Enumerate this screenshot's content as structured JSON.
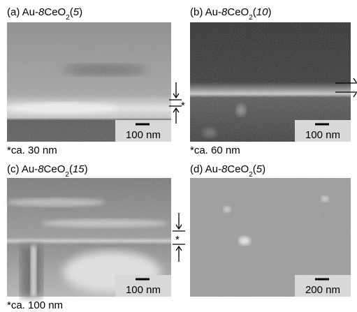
{
  "panels": [
    {
      "label": [
        {
          "text": "(a) Au-"
        },
        {
          "text": "8",
          "style": "italic"
        },
        {
          "text": "CeO"
        },
        {
          "text": "2",
          "style": "sub"
        },
        {
          "text": "("
        },
        {
          "text": "5",
          "style": "italic"
        },
        {
          "text": ")"
        }
      ],
      "scale_bar": "100 nm",
      "thickness_marker": "*",
      "caption": "*ca. 30 nm"
    },
    {
      "label": [
        {
          "text": "(b) Au-"
        },
        {
          "text": "8",
          "style": "italic"
        },
        {
          "text": "CeO"
        },
        {
          "text": "2",
          "style": "sub"
        },
        {
          "text": "("
        },
        {
          "text": "10",
          "style": "italic"
        },
        {
          "text": ")"
        }
      ],
      "scale_bar": "100 nm",
      "caption": "*ca. 60 nm"
    },
    {
      "label": [
        {
          "text": "(c) Au-"
        },
        {
          "text": "8",
          "style": "italic"
        },
        {
          "text": "CeO"
        },
        {
          "text": "2",
          "style": "sub"
        },
        {
          "text": "("
        },
        {
          "text": "15",
          "style": "italic"
        },
        {
          "text": ")"
        }
      ],
      "scale_bar": "100 nm",
      "thickness_marker": "*",
      "caption": "*ca. 100 nm"
    },
    {
      "label": [
        {
          "text": "(d) Au-"
        },
        {
          "text": "8",
          "style": "italic"
        },
        {
          "text": "CeO"
        },
        {
          "text": "2",
          "style": "sub"
        },
        {
          "text": "("
        },
        {
          "text": "5",
          "style": "italic"
        },
        {
          "text": ")"
        }
      ],
      "scale_bar": "200 nm"
    }
  ]
}
